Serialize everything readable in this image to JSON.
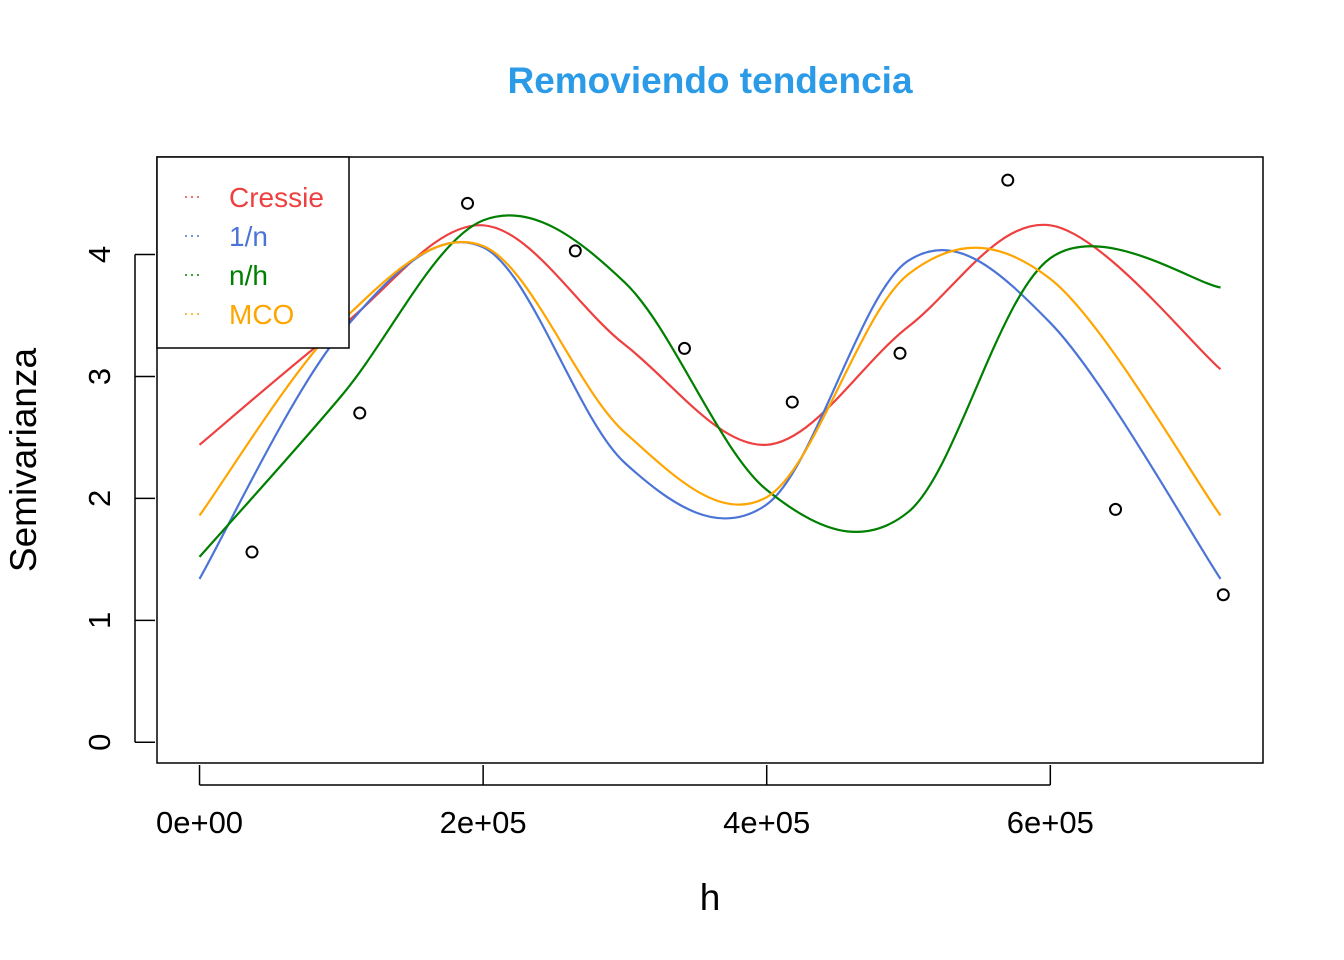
{
  "chart_data": {
    "type": "scatter",
    "title": "Removiendo tendencia",
    "title_color": "#2B9BE8",
    "xlabel": "h",
    "ylabel": "Semivarianza",
    "xlim": [
      -30000,
      750000
    ],
    "ylim": [
      -0.17,
      4.8
    ],
    "xticks": [
      0,
      200000,
      400000,
      600000
    ],
    "xtick_labels": [
      "0e+00",
      "2e+05",
      "4e+05",
      "6e+05"
    ],
    "yticks": [
      0,
      1,
      2,
      3,
      4
    ],
    "ytick_labels": [
      "0",
      "1",
      "2",
      "3",
      "4"
    ],
    "grid": false,
    "legend_position": "top-left",
    "points": {
      "x": [
        37000,
        113000,
        189000,
        265000,
        342000,
        418000,
        494000,
        570000,
        646000,
        722000
      ],
      "y": [
        1.56,
        2.7,
        4.42,
        4.03,
        3.23,
        2.79,
        3.19,
        4.61,
        1.91,
        1.21
      ]
    },
    "series": [
      {
        "name": "Cressie",
        "color": "#EE4040",
        "x": [
          0,
          100000,
          200000,
          300000,
          400000,
          500000,
          600000,
          720000
        ],
        "values": [
          2.44,
          3.41,
          4.24,
          3.26,
          2.44,
          3.41,
          4.24,
          3.06
        ]
      },
      {
        "name": "1/n",
        "color": "#4B74D6",
        "x": [
          0,
          100000,
          200000,
          300000,
          400000,
          500000,
          600000,
          720000
        ],
        "values": [
          1.34,
          3.36,
          4.06,
          2.29,
          1.95,
          3.95,
          3.44,
          1.34
        ]
      },
      {
        "name": "n/h",
        "color": "#008000",
        "x": [
          0,
          100000,
          200000,
          300000,
          400000,
          500000,
          600000,
          720000
        ],
        "values": [
          1.52,
          2.84,
          4.28,
          3.77,
          2.07,
          1.89,
          3.97,
          3.73
        ]
      },
      {
        "name": "MCO",
        "color": "#FFA500",
        "x": [
          0,
          100000,
          200000,
          300000,
          400000,
          500000,
          600000,
          720000
        ],
        "values": [
          1.86,
          3.45,
          4.07,
          2.54,
          2.01,
          3.84,
          3.8,
          1.86
        ]
      }
    ]
  }
}
